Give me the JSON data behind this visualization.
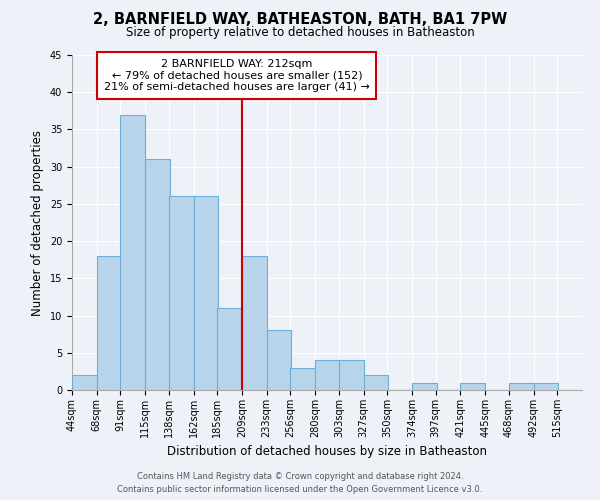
{
  "title": "2, BARNFIELD WAY, BATHEASTON, BATH, BA1 7PW",
  "subtitle": "Size of property relative to detached houses in Batheaston",
  "xlabel": "Distribution of detached houses by size in Batheaston",
  "ylabel": "Number of detached properties",
  "bin_labels": [
    "44sqm",
    "68sqm",
    "91sqm",
    "115sqm",
    "138sqm",
    "162sqm",
    "185sqm",
    "209sqm",
    "233sqm",
    "256sqm",
    "280sqm",
    "303sqm",
    "327sqm",
    "350sqm",
    "374sqm",
    "397sqm",
    "421sqm",
    "445sqm",
    "468sqm",
    "492sqm",
    "515sqm"
  ],
  "bin_edges": [
    44,
    68,
    91,
    115,
    138,
    162,
    185,
    209,
    233,
    256,
    280,
    303,
    327,
    350,
    374,
    397,
    421,
    445,
    468,
    492,
    515
  ],
  "bar_heights": [
    2,
    18,
    37,
    31,
    26,
    26,
    11,
    18,
    8,
    3,
    4,
    4,
    2,
    0,
    1,
    0,
    1,
    0,
    1,
    1,
    0
  ],
  "bar_color": "#b8d4ea",
  "bar_edge_color": "#6baed6",
  "property_line_x": 209,
  "property_line_color": "#cc0000",
  "annotation_title": "2 BARNFIELD WAY: 212sqm",
  "annotation_line1": "← 79% of detached houses are smaller (152)",
  "annotation_line2": "21% of semi-detached houses are larger (41) →",
  "annotation_box_color": "#ffffff",
  "annotation_box_edge": "#cc0000",
  "ylim": [
    0,
    45
  ],
  "yticks": [
    0,
    5,
    10,
    15,
    20,
    25,
    30,
    35,
    40,
    45
  ],
  "footer_line1": "Contains HM Land Registry data © Crown copyright and database right 2024.",
  "footer_line2": "Contains public sector information licensed under the Open Government Licence v3.0.",
  "background_color": "#eef2f8",
  "title_fontsize": 10.5,
  "subtitle_fontsize": 8.5,
  "axis_label_fontsize": 8.5,
  "tick_fontsize": 7,
  "footer_fontsize": 6,
  "annotation_fontsize": 8
}
